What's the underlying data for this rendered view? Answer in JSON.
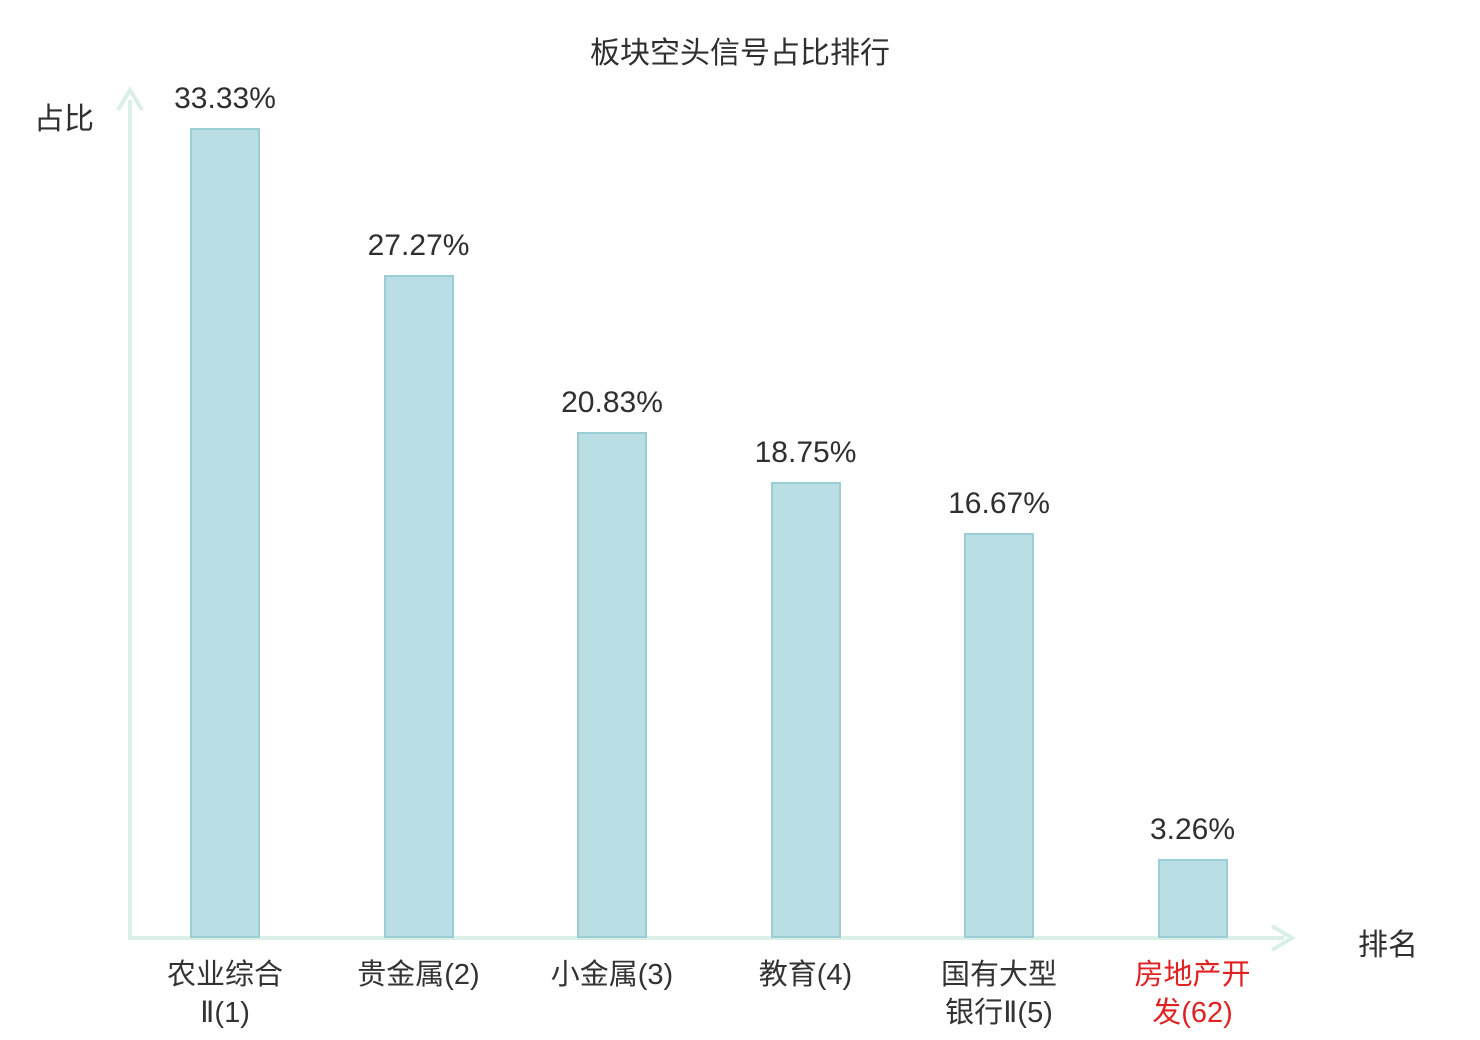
{
  "chart_data": {
    "type": "bar",
    "title": "板块空头信号占比排行",
    "xlabel": "排名",
    "ylabel": "占比",
    "categories": [
      "农业综合\nⅡ(1)",
      "贵金属(2)",
      "小金属(3)",
      "教育(4)",
      "国有大型\n银行Ⅱ(5)",
      "房地产开\n发(62)"
    ],
    "values": [
      33.33,
      27.27,
      20.83,
      18.75,
      16.67,
      3.26
    ],
    "value_labels": [
      "33.33%",
      "27.27%",
      "20.83%",
      "18.75%",
      "16.67%",
      "3.26%"
    ],
    "category_colors": [
      "#333333",
      "#333333",
      "#333333",
      "#333333",
      "#333333",
      "#e02222"
    ],
    "bar_fill": "#b9dfe4",
    "bar_border": "#9bced4",
    "axis_color": "#d9efe8",
    "text_color": "#2f2f2f",
    "ylim": [
      0,
      35
    ],
    "grid": false,
    "legend": "none"
  }
}
